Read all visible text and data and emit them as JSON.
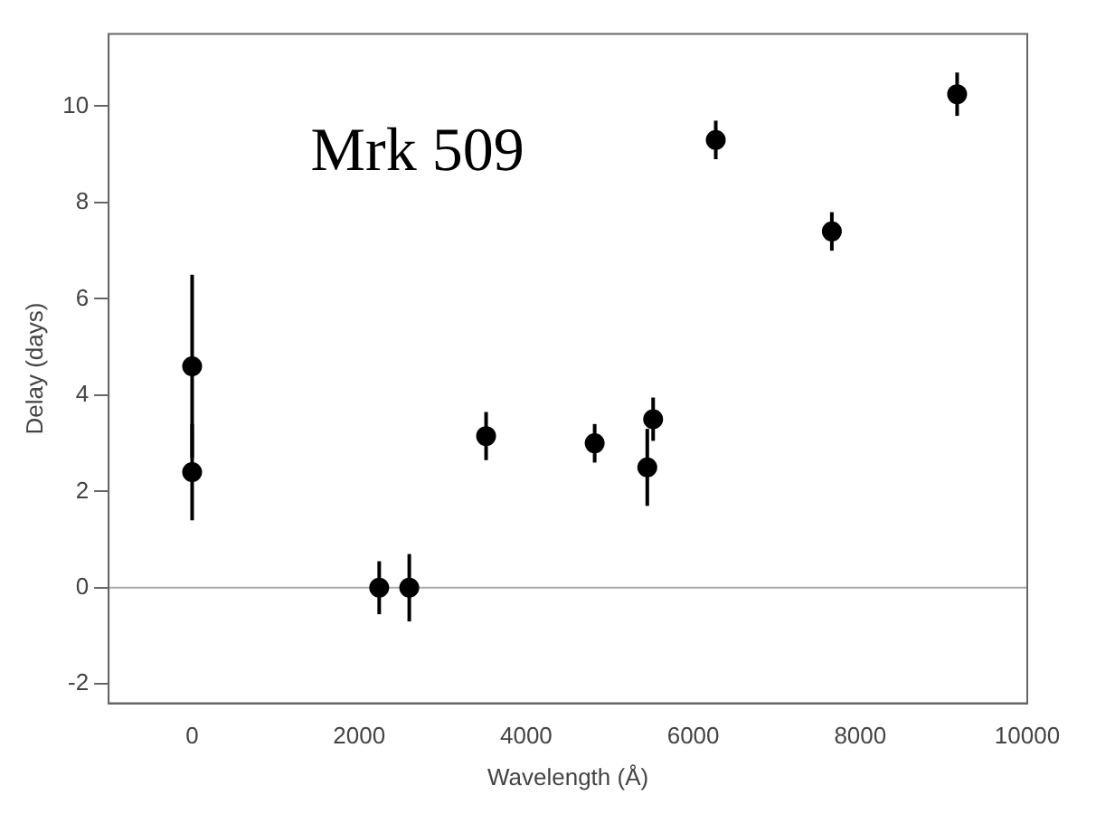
{
  "chart_data": {
    "type": "scatter",
    "xlabel": "Wavelength (Å)",
    "ylabel": "Delay (days)",
    "annotations": [
      "Mrk 509"
    ],
    "x": [
      0,
      0,
      2240,
      2600,
      3520,
      4820,
      5450,
      5520,
      6270,
      7660,
      9160
    ],
    "values": [
      4.6,
      2.4,
      0,
      0,
      3.15,
      3.0,
      2.5,
      3.5,
      9.3,
      7.4,
      10.25
    ],
    "errors": [
      1.9,
      1.0,
      0.55,
      0.7,
      0.5,
      0.4,
      0.8,
      0.45,
      0.4,
      0.4,
      0.45
    ],
    "color": "#000000",
    "marker": "circle",
    "xlim": [
      -1000,
      10000
    ],
    "xticks": [
      0,
      2000,
      4000,
      6000,
      8000,
      10000
    ],
    "ylim": [
      -2.4,
      11.5
    ],
    "yticks": [
      -2,
      0,
      2,
      4,
      6,
      8,
      10
    ],
    "ref_lines": [
      {
        "axis": "y",
        "value": 0,
        "color": "#aaaaaa"
      }
    ],
    "grid": false,
    "legend": false
  }
}
